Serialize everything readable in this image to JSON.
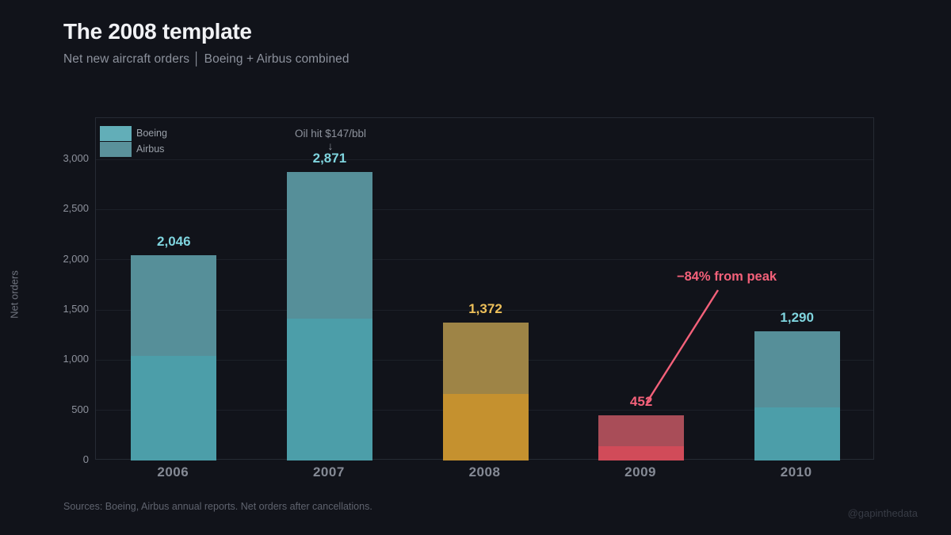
{
  "header": {
    "title": "The 2008 template",
    "subtitle": "Net new aircraft orders  │  Boeing + Airbus combined"
  },
  "footer": {
    "sources": "Sources: Boeing, Airbus annual reports. Net orders after cancellations.",
    "watermark": "@gapinthedata"
  },
  "colors": {
    "background": "#11131a",
    "title": "#f1f2f5",
    "subtitle": "#8c919c",
    "grid": "#1c2028",
    "plot_border": "#262b34",
    "axis_text": "#8d919c",
    "teal_bright": "#4c9ea9",
    "teal_muted": "#568f99",
    "amber_bright": "#c5912f",
    "amber_muted": "#9e8446",
    "red_bright": "#d14b59",
    "red_muted": "#a94d58",
    "label_teal": "#7fd4de",
    "label_amber": "#eec05a",
    "label_pink": "#f4617a",
    "annotation_pink": "#f4617a",
    "source_text": "#5f636e",
    "watermark": "#383c46"
  },
  "chart_data": {
    "type": "bar",
    "stacked": true,
    "title": "The 2008 template",
    "subtitle": "Net new aircraft orders | Boeing + Airbus combined",
    "ylabel": "Net orders",
    "xlabel": "",
    "ylim": [
      0,
      3410
    ],
    "grid": true,
    "legend_position": "top-left",
    "categories": [
      "2006",
      "2007",
      "2008",
      "2009",
      "2010"
    ],
    "series": [
      {
        "name": "Boeing",
        "values": [
          1044,
          1413,
          662,
          142,
          530
        ]
      },
      {
        "name": "Airbus",
        "values": [
          1002,
          1458,
          710,
          310,
          760
        ]
      }
    ],
    "totals": [
      2046,
      2871,
      1372,
      452,
      1290
    ],
    "yticks": [
      {
        "value": 0,
        "label": "0"
      },
      {
        "value": 500,
        "label": "500"
      },
      {
        "value": 1000,
        "label": "1,000"
      },
      {
        "value": 1500,
        "label": "1,500"
      },
      {
        "value": 2000,
        "label": "2,000"
      },
      {
        "value": 2500,
        "label": "2,500"
      },
      {
        "value": 3000,
        "label": "3,000"
      }
    ],
    "bars": [
      {
        "category": "2006",
        "boeing": 1044,
        "airbus": 1002,
        "total": 2046,
        "total_label": "2,046",
        "color_bottom": "#4c9ea9",
        "color_top": "#568f99",
        "label_color": "#7fd4de"
      },
      {
        "category": "2007",
        "boeing": 1413,
        "airbus": 1458,
        "total": 2871,
        "total_label": "2,871",
        "color_bottom": "#4c9ea9",
        "color_top": "#568f99",
        "label_color": "#7fd4de"
      },
      {
        "category": "2008",
        "boeing": 662,
        "airbus": 710,
        "total": 1372,
        "total_label": "1,372",
        "color_bottom": "#c5912f",
        "color_top": "#9e8446",
        "label_color": "#eec05a"
      },
      {
        "category": "2009",
        "boeing": 142,
        "airbus": 310,
        "total": 452,
        "total_label": "452",
        "color_bottom": "#d14b59",
        "color_top": "#a94d58",
        "label_color": "#f4617a"
      },
      {
        "category": "2010",
        "boeing": 530,
        "airbus": 760,
        "total": 1290,
        "total_label": "1,290",
        "color_bottom": "#4c9ea9",
        "color_top": "#568f99",
        "label_color": "#7fd4de"
      }
    ],
    "legend": [
      {
        "label": "Boeing",
        "color": "#62aeb8"
      },
      {
        "label": "Airbus",
        "color": "#5a919b"
      }
    ],
    "annotations": [
      {
        "id": "oil-price",
        "text": "Oil hit $147/bbl",
        "arrow": "↓"
      },
      {
        "id": "peak-drop",
        "text": "−84% from peak"
      }
    ]
  }
}
